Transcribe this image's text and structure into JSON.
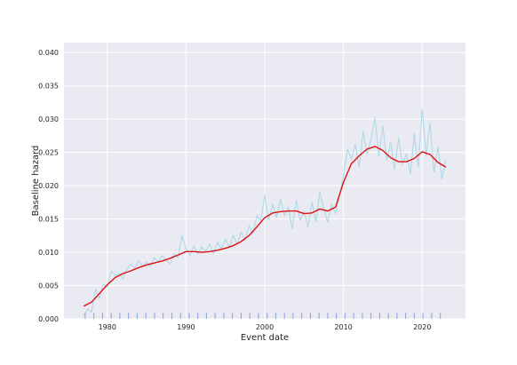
{
  "chart_data": {
    "type": "line",
    "xlabel": "Event date",
    "ylabel": "Baseline hazard",
    "xlim": [
      1974.5,
      2025.5
    ],
    "ylim": [
      0,
      0.0415
    ],
    "x_ticks": [
      1980,
      1990,
      2000,
      2010,
      2020
    ],
    "x_tick_labels": [
      "1980",
      "1990",
      "2000",
      "2010",
      "2020"
    ],
    "y_ticks": [
      0,
      0.005,
      0.01,
      0.015,
      0.02,
      0.025,
      0.03,
      0.035,
      0.04
    ],
    "y_tick_labels": [
      "0.000",
      "0.005",
      "0.010",
      "0.015",
      "0.020",
      "0.025",
      "0.030",
      "0.035",
      "0.040"
    ],
    "grid": true,
    "background_color": "#eaeaf2",
    "series": [
      {
        "kind": "raw",
        "color": "#add8e6",
        "x": [
          1977.0,
          1977.5,
          1978.0,
          1978.5,
          1979.0,
          1979.5,
          1980.0,
          1980.5,
          1981.0,
          1981.5,
          1982.0,
          1982.5,
          1983.0,
          1983.5,
          1984.0,
          1984.5,
          1985.0,
          1985.5,
          1986.0,
          1986.5,
          1987.0,
          1987.5,
          1988.0,
          1988.5,
          1989.0,
          1989.5,
          1990.0,
          1990.5,
          1991.0,
          1991.5,
          1992.0,
          1992.5,
          1993.0,
          1993.5,
          1994.0,
          1994.5,
          1995.0,
          1995.5,
          1996.0,
          1996.5,
          1997.0,
          1997.5,
          1998.0,
          1998.5,
          1999.0,
          1999.5,
          2000.0,
          2000.5,
          2001.0,
          2001.5,
          2002.0,
          2002.5,
          2003.0,
          2003.5,
          2004.0,
          2004.5,
          2005.0,
          2005.5,
          2006.0,
          2006.5,
          2007.0,
          2007.5,
          2008.0,
          2008.5,
          2009.0,
          2009.5,
          2010.0,
          2010.5,
          2011.0,
          2011.5,
          2012.0,
          2012.5,
          2013.0,
          2013.5,
          2014.0,
          2014.5,
          2015.0,
          2015.5,
          2016.0,
          2016.5,
          2017.0,
          2017.5,
          2018.0,
          2018.5,
          2019.0,
          2019.5,
          2020.0,
          2020.5,
          2021.0,
          2021.5,
          2022.0,
          2022.5,
          2023.0
        ],
        "y": [
          0.0005,
          0.0015,
          0.001,
          0.0045,
          0.003,
          0.0052,
          0.0048,
          0.0072,
          0.0065,
          0.0068,
          0.006,
          0.0075,
          0.0082,
          0.0076,
          0.0088,
          0.0079,
          0.0085,
          0.008,
          0.0092,
          0.0086,
          0.0095,
          0.0088,
          0.0082,
          0.0098,
          0.0092,
          0.0125,
          0.0105,
          0.0095,
          0.011,
          0.0098,
          0.0108,
          0.0102,
          0.0112,
          0.0098,
          0.0115,
          0.0105,
          0.012,
          0.0108,
          0.0125,
          0.0112,
          0.013,
          0.0118,
          0.014,
          0.0128,
          0.0155,
          0.0148,
          0.0185,
          0.0148,
          0.0172,
          0.0152,
          0.018,
          0.0155,
          0.0168,
          0.0135,
          0.0178,
          0.0148,
          0.0162,
          0.0138,
          0.0175,
          0.0145,
          0.019,
          0.0165,
          0.0145,
          0.0172,
          0.0158,
          0.0185,
          0.0215,
          0.0255,
          0.024,
          0.0262,
          0.0228,
          0.0282,
          0.0248,
          0.027,
          0.0302,
          0.0245,
          0.029,
          0.0238,
          0.0265,
          0.0225,
          0.0272,
          0.0232,
          0.0248,
          0.0218,
          0.0278,
          0.0228,
          0.0315,
          0.0245,
          0.0295,
          0.022,
          0.0258,
          0.021,
          0.024
        ]
      },
      {
        "kind": "smoothed",
        "color": "#dd1111",
        "x": [
          1977.0,
          1978.0,
          1979.0,
          1980.0,
          1981.0,
          1982.0,
          1983.0,
          1984.0,
          1985.0,
          1986.0,
          1987.0,
          1988.0,
          1989.0,
          1990.0,
          1991.0,
          1992.0,
          1993.0,
          1994.0,
          1995.0,
          1996.0,
          1997.0,
          1998.0,
          1999.0,
          2000.0,
          2001.0,
          2002.0,
          2003.0,
          2004.0,
          2005.0,
          2006.0,
          2007.0,
          2008.0,
          2009.0,
          2010.0,
          2011.0,
          2012.0,
          2013.0,
          2014.0,
          2015.0,
          2016.0,
          2017.0,
          2018.0,
          2019.0,
          2020.0,
          2021.0,
          2022.0,
          2023.0
        ],
        "y": [
          0.0019,
          0.0025,
          0.0038,
          0.0051,
          0.0062,
          0.0068,
          0.0072,
          0.0077,
          0.0081,
          0.0084,
          0.0087,
          0.0091,
          0.0096,
          0.0101,
          0.0101,
          0.01,
          0.0101,
          0.0103,
          0.0106,
          0.011,
          0.0116,
          0.0125,
          0.0138,
          0.0152,
          0.0159,
          0.0161,
          0.0162,
          0.0162,
          0.0158,
          0.0159,
          0.0165,
          0.0162,
          0.0168,
          0.0205,
          0.0233,
          0.0245,
          0.0255,
          0.0259,
          0.0253,
          0.0242,
          0.0236,
          0.0236,
          0.0241,
          0.0251,
          0.0247,
          0.0235,
          0.0228
        ]
      }
    ],
    "rug": {
      "color": "#8aa0d8",
      "height": 0.0009,
      "x": [
        1977.2,
        1978.3,
        1979.4,
        1980.5,
        1981.6,
        1982.7,
        1983.8,
        1984.9,
        1986.0,
        1987.1,
        1988.2,
        1989.3,
        1990.4,
        1991.5,
        1992.6,
        1993.7,
        1994.8,
        1995.9,
        1997.0,
        1998.1,
        1999.2,
        2000.3,
        2001.4,
        2002.5,
        2003.6,
        2004.7,
        2005.8,
        2006.9,
        2008.0,
        2009.1,
        2010.2,
        2011.3,
        2012.4,
        2013.5,
        2014.6,
        2015.7,
        2016.8,
        2017.9,
        2019.0,
        2020.1,
        2021.2,
        2022.3
      ]
    }
  }
}
